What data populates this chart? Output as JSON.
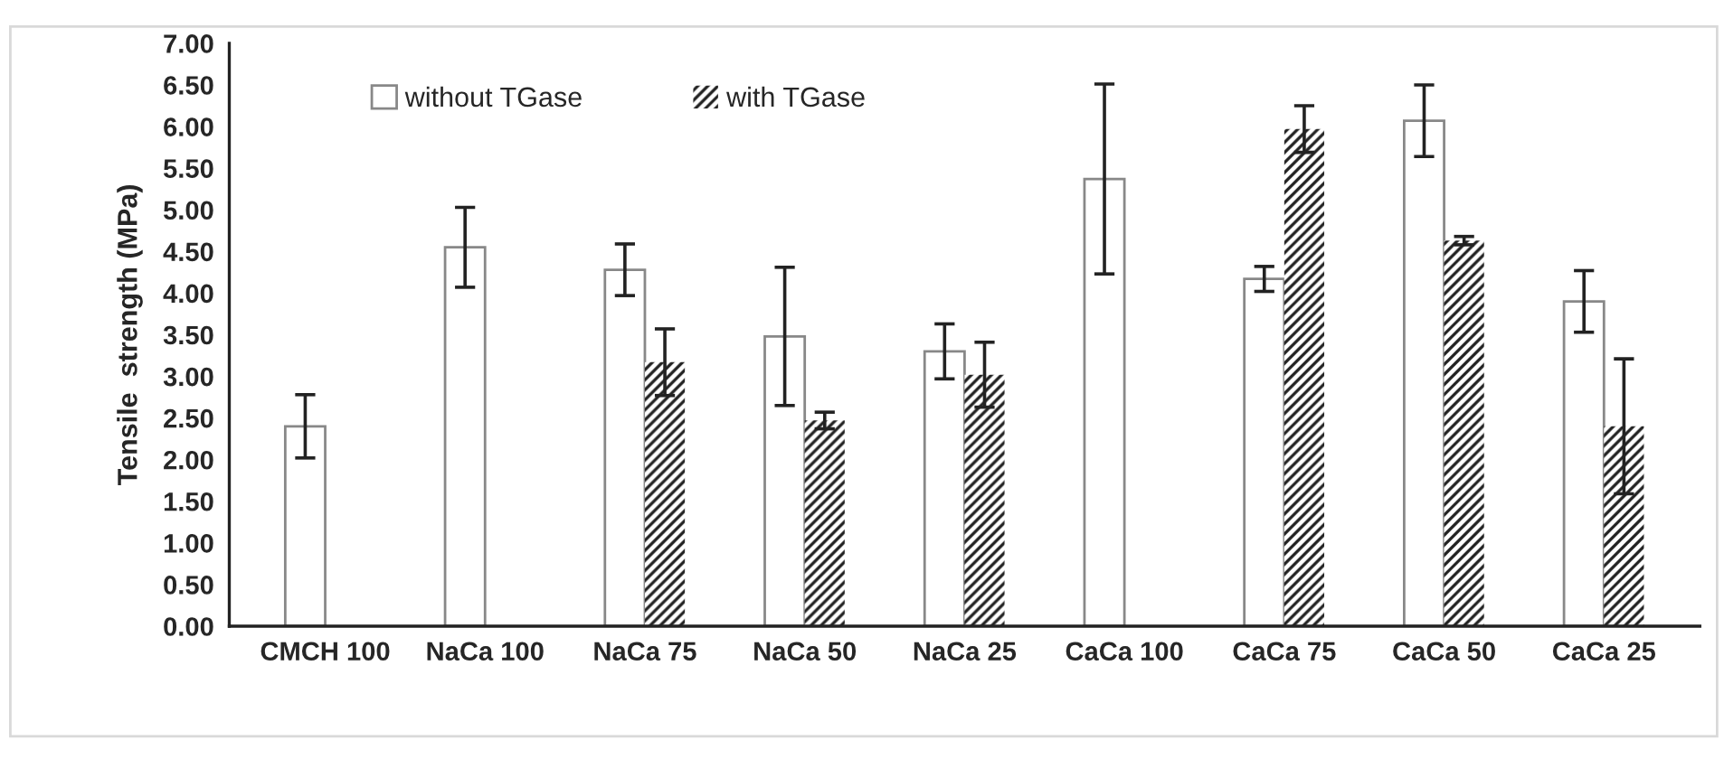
{
  "chart_data": {
    "type": "bar",
    "ylabel": "Tensile  strength (MPa)",
    "categories": [
      "CMCH 100",
      "NaCa 100",
      "NaCa 75",
      "NaCa 50",
      "NaCa 25",
      "CaCa 100",
      "CaCa 75",
      "CaCa 50",
      "CaCa 25"
    ],
    "series": [
      {
        "name": "without TGase",
        "color": "#ffffff",
        "values": [
          2.4,
          4.55,
          4.28,
          3.48,
          3.3,
          5.37,
          4.17,
          6.07,
          3.9
        ],
        "errors": [
          0.38,
          0.48,
          0.31,
          0.83,
          0.33,
          1.14,
          0.15,
          0.43,
          0.37
        ]
      },
      {
        "name": "with TGase",
        "color": "#222222",
        "values": [
          null,
          null,
          3.17,
          2.47,
          3.02,
          null,
          5.97,
          4.63,
          2.4
        ],
        "errors": [
          null,
          null,
          0.4,
          0.1,
          0.39,
          null,
          0.28,
          0.05,
          0.81
        ]
      }
    ],
    "ylim": [
      0,
      7
    ],
    "yticks": [
      {
        "value": 0,
        "label": "0.00"
      },
      {
        "value": 0.5,
        "label": "0.50"
      },
      {
        "value": 1,
        "label": "1.00"
      },
      {
        "value": 1.5,
        "label": "1.50"
      },
      {
        "value": 2,
        "label": "2.00"
      },
      {
        "value": 2.5,
        "label": "2.50"
      },
      {
        "value": 3,
        "label": "3.00"
      },
      {
        "value": 3.5,
        "label": "3.50"
      },
      {
        "value": 4,
        "label": "4.00"
      },
      {
        "value": 4.5,
        "label": "4.50"
      },
      {
        "value": 5,
        "label": "5.00"
      },
      {
        "value": 5.5,
        "label": "5.50"
      },
      {
        "value": 6,
        "label": "6.00"
      },
      {
        "value": 6.5,
        "label": "6.50"
      },
      {
        "value": 7,
        "label": "7.00"
      }
    ],
    "grid": false,
    "legend": "top"
  }
}
